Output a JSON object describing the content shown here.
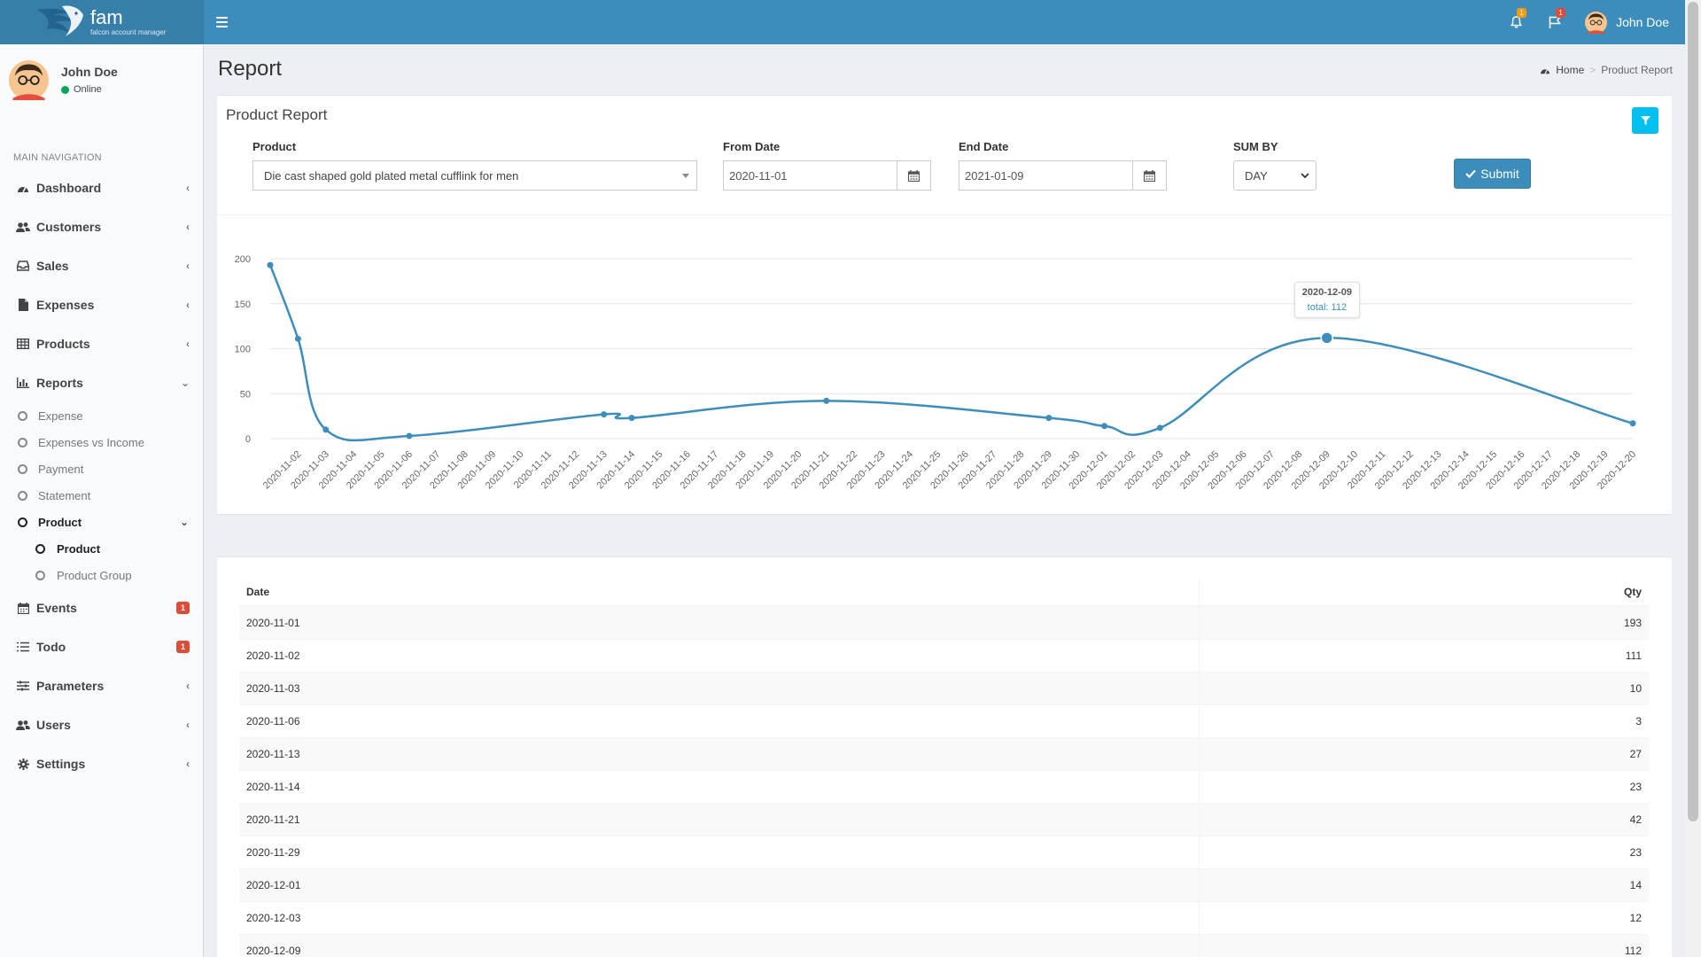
{
  "header": {
    "logo_name": "fam",
    "logo_sub": "falcon account manager",
    "notif_count": "1",
    "flag_count": "1",
    "user_name": "John Doe"
  },
  "sidebar": {
    "user_name": "John Doe",
    "status": "Online",
    "nav_header": "MAIN NAVIGATION",
    "items": [
      {
        "label": "Dashboard"
      },
      {
        "label": "Customers"
      },
      {
        "label": "Sales"
      },
      {
        "label": "Expenses"
      },
      {
        "label": "Products"
      },
      {
        "label": "Reports"
      },
      {
        "label": "Events",
        "badge": "1"
      },
      {
        "label": "Todo",
        "badge": "1"
      },
      {
        "label": "Parameters"
      },
      {
        "label": "Users"
      },
      {
        "label": "Settings"
      }
    ],
    "reports_sub": [
      "Expense",
      "Expenses vs Income",
      "Payment",
      "Statement",
      "Product"
    ],
    "product_sub": [
      "Product",
      "Product Group"
    ]
  },
  "page": {
    "title": "Report",
    "breadcrumb_home": "Home",
    "breadcrumb_current": "Product Report"
  },
  "filters": {
    "box_title": "Product Report",
    "product_label": "Product",
    "product_value": "Die cast shaped gold plated metal cufflink for men",
    "from_label": "From Date",
    "from_value": "2020-11-01",
    "end_label": "End Date",
    "end_value": "2021-01-09",
    "sumby_label": "SUM BY",
    "sumby_value": "DAY",
    "submit_label": "Submit"
  },
  "chart_data": {
    "type": "line",
    "title": "",
    "xlabel": "",
    "ylabel": "",
    "ylim": [
      0,
      200
    ],
    "yticks": [
      0,
      50,
      100,
      150,
      200
    ],
    "grid": true,
    "x": [
      "2020-11-01",
      "2020-11-02",
      "2020-11-03",
      "2020-11-06",
      "2020-11-13",
      "2020-11-14",
      "2020-11-21",
      "2020-11-29",
      "2020-12-01",
      "2020-12-03",
      "2020-12-09",
      "2020-12-20"
    ],
    "series": [
      {
        "values": [
          193,
          111,
          10,
          3,
          27,
          23,
          42,
          23,
          14,
          12,
          112,
          17
        ]
      }
    ],
    "xticks": [
      "2020-11-02",
      "2020-11-03",
      "2020-11-04",
      "2020-11-05",
      "2020-11-06",
      "2020-11-07",
      "2020-11-08",
      "2020-11-09",
      "2020-11-10",
      "2020-11-11",
      "2020-11-12",
      "2020-11-13",
      "2020-11-14",
      "2020-11-15",
      "2020-11-16",
      "2020-11-17",
      "2020-11-18",
      "2020-11-19",
      "2020-11-20",
      "2020-11-21",
      "2020-11-22",
      "2020-11-23",
      "2020-11-24",
      "2020-11-25",
      "2020-11-26",
      "2020-11-27",
      "2020-11-28",
      "2020-11-29",
      "2020-11-30",
      "2020-12-01",
      "2020-12-02",
      "2020-12-03",
      "2020-12-04",
      "2020-12-05",
      "2020-12-06",
      "2020-12-07",
      "2020-12-08",
      "2020-12-09",
      "2020-12-10",
      "2020-12-11",
      "2020-12-12",
      "2020-12-13",
      "2020-12-14",
      "2020-12-15",
      "2020-12-16",
      "2020-12-17",
      "2020-12-18",
      "2020-12-19",
      "2020-12-20"
    ],
    "tooltip": {
      "date": "2020-12-09",
      "label": "total: 112"
    },
    "line_color": "#3d8ebd"
  },
  "table": {
    "headers": [
      "Date",
      "Qty"
    ],
    "rows": [
      [
        "2020-11-01",
        "193"
      ],
      [
        "2020-11-02",
        "111"
      ],
      [
        "2020-11-03",
        "10"
      ],
      [
        "2020-11-06",
        "3"
      ],
      [
        "2020-11-13",
        "27"
      ],
      [
        "2020-11-14",
        "23"
      ],
      [
        "2020-11-21",
        "42"
      ],
      [
        "2020-11-29",
        "23"
      ],
      [
        "2020-12-01",
        "14"
      ],
      [
        "2020-12-03",
        "12"
      ],
      [
        "2020-12-09",
        "112"
      ]
    ]
  },
  "icons": {
    "hamburger": "menu-icon",
    "bell": "bell-icon",
    "flag": "flag-icon",
    "filter": "filter-icon",
    "calendar": "calendar-icon"
  },
  "colors": {
    "header": "#3c8dbc",
    "logo_bg": "#367fa9",
    "badge_red": "#dd4b39",
    "badge_yellow": "#f39c12",
    "filter_btn": "#00c0ef"
  }
}
